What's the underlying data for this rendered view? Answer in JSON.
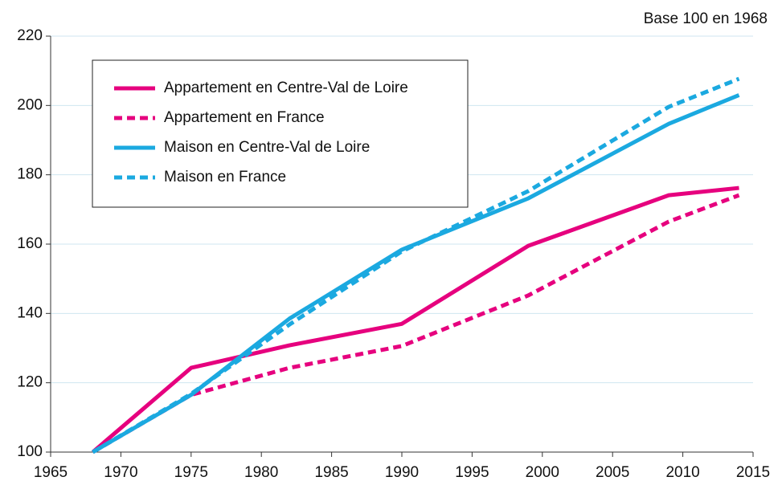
{
  "chart_data": {
    "type": "line",
    "subtitle": "Base 100 en 1968",
    "x": [
      1968,
      1975,
      1982,
      1990,
      1999,
      2009,
      2014
    ],
    "series": [
      {
        "name": "Appartement en Centre-Val de Loire",
        "color": "#e6007e",
        "dash": false,
        "values": [
          100,
          124.3,
          130.8,
          137,
          159.5,
          174.1,
          176.2
        ]
      },
      {
        "name": "Appartement en France",
        "color": "#e6007e",
        "dash": true,
        "values": [
          100,
          116.5,
          124.3,
          130.6,
          145.2,
          166.5,
          174.1
        ]
      },
      {
        "name": "Maison en Centre-Val de Loire",
        "color": "#1ba9e0",
        "dash": false,
        "values": [
          100,
          116.5,
          138.5,
          158.4,
          173.2,
          194.7,
          203
        ]
      },
      {
        "name": "Maison en France",
        "color": "#1ba9e0",
        "dash": true,
        "values": [
          100,
          116.8,
          136.8,
          157.9,
          175.3,
          199.6,
          207.7
        ]
      }
    ],
    "xlim": [
      1965,
      2015
    ],
    "xticks": [
      1965,
      1970,
      1975,
      1980,
      1985,
      1990,
      1995,
      2000,
      2005,
      2010,
      2015
    ],
    "ylim": [
      100,
      220
    ],
    "yticks": [
      100,
      120,
      140,
      160,
      180,
      200,
      220
    ],
    "grid": true
  }
}
